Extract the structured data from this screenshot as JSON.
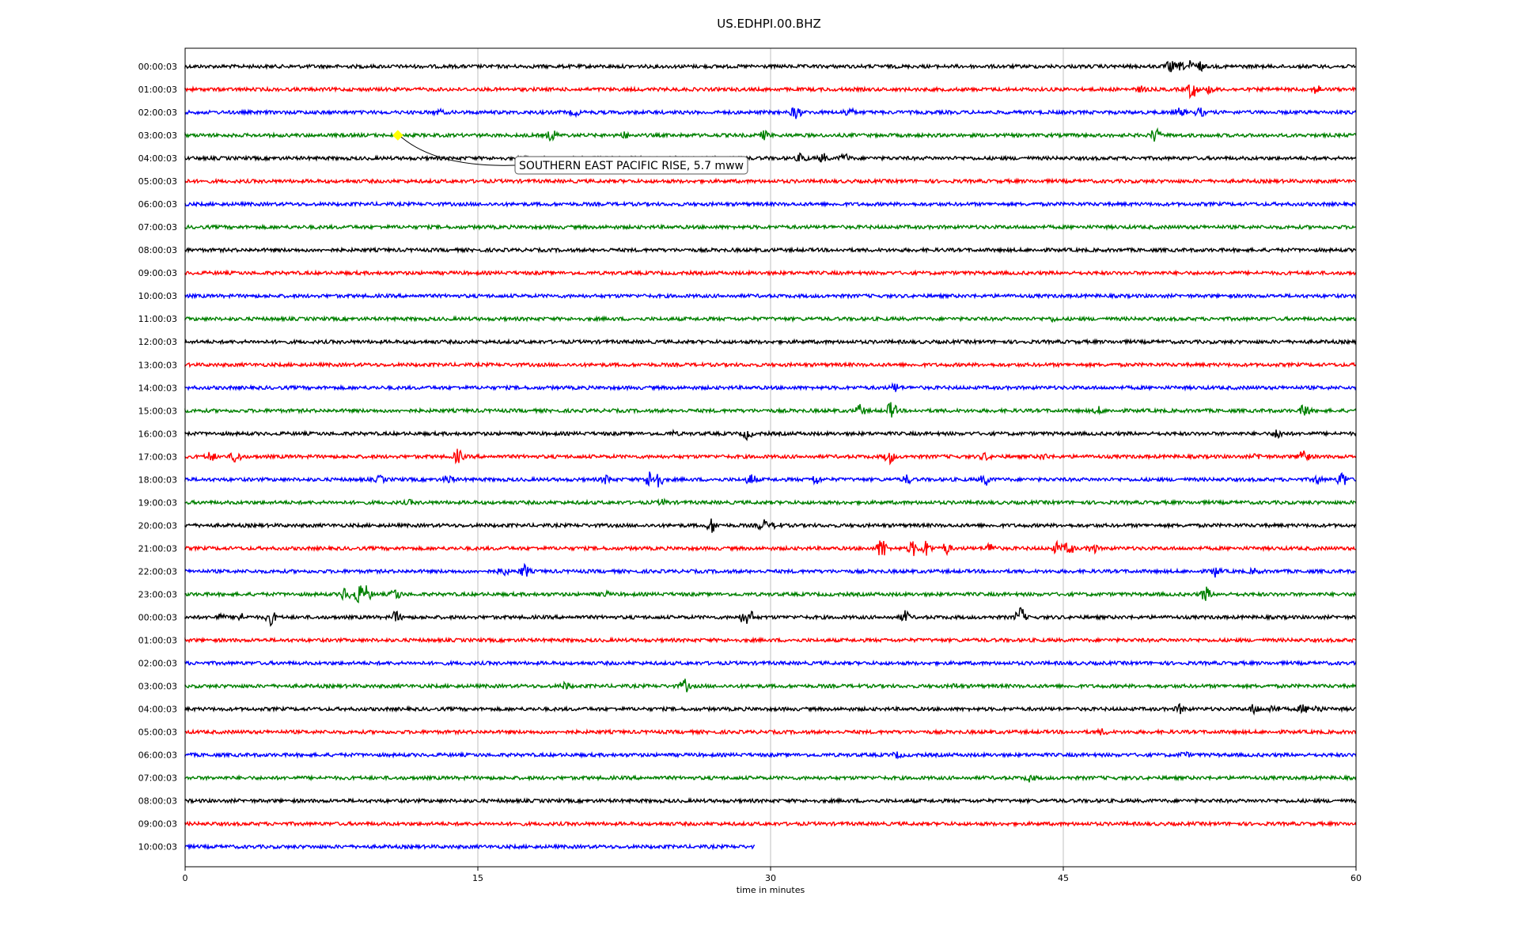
{
  "chart_data": {
    "type": "line",
    "title": "US.EDHPI.00.BHZ",
    "xlabel": "time in minutes",
    "xlim": [
      0,
      60
    ],
    "x_ticks": [
      0,
      15,
      30,
      45,
      60
    ],
    "x_tick_labels": [
      "0",
      "15",
      "30",
      "45",
      "60"
    ],
    "grid": "vertical",
    "trace_colors": [
      "#000000",
      "#ff0000",
      "#0000ff",
      "#008000"
    ],
    "rows": [
      {
        "label": "00:00:03",
        "end_minute": 60,
        "events": [
          [
            50.5,
            7
          ],
          [
            51.5,
            6
          ],
          [
            52,
            5
          ],
          [
            51,
            4
          ]
        ]
      },
      {
        "label": "01:00:03",
        "end_minute": 60,
        "events": [
          [
            51.6,
            12
          ],
          [
            52.5,
            4
          ],
          [
            58,
            5
          ],
          [
            49,
            3
          ]
        ]
      },
      {
        "label": "02:00:03",
        "end_minute": 60,
        "events": [
          [
            31.3,
            8
          ],
          [
            34,
            6
          ],
          [
            51,
            5
          ],
          [
            52,
            5
          ],
          [
            13,
            3
          ],
          [
            20,
            3
          ]
        ]
      },
      {
        "label": "03:00:03",
        "end_minute": 60,
        "events": [
          [
            18.8,
            7
          ],
          [
            29.7,
            5
          ],
          [
            49.7,
            9
          ],
          [
            22.5,
            3
          ]
        ]
      },
      {
        "label": "04:00:03",
        "end_minute": 60,
        "events": [
          [
            31.6,
            6
          ],
          [
            33.8,
            5
          ],
          [
            32.7,
            5
          ]
        ]
      },
      {
        "label": "05:00:03",
        "end_minute": 60,
        "events": []
      },
      {
        "label": "06:00:03",
        "end_minute": 60,
        "events": []
      },
      {
        "label": "07:00:03",
        "end_minute": 60,
        "events": []
      },
      {
        "label": "08:00:03",
        "end_minute": 60,
        "events": []
      },
      {
        "label": "09:00:03",
        "end_minute": 60,
        "events": []
      },
      {
        "label": "10:00:03",
        "end_minute": 60,
        "events": []
      },
      {
        "label": "11:00:03",
        "end_minute": 60,
        "events": [
          [
            44.5,
            2
          ]
        ]
      },
      {
        "label": "12:00:03",
        "end_minute": 60,
        "events": []
      },
      {
        "label": "13:00:03",
        "end_minute": 60,
        "events": []
      },
      {
        "label": "14:00:03",
        "end_minute": 60,
        "events": [
          [
            36.4,
            5
          ]
        ]
      },
      {
        "label": "15:00:03",
        "end_minute": 60,
        "events": [
          [
            34.6,
            7
          ],
          [
            36.2,
            11
          ],
          [
            57.4,
            9
          ],
          [
            46.8,
            4
          ]
        ]
      },
      {
        "label": "16:00:03",
        "end_minute": 60,
        "events": [
          [
            28.8,
            6
          ],
          [
            56,
            6
          ],
          [
            25,
            2
          ]
        ]
      },
      {
        "label": "17:00:03",
        "end_minute": 60,
        "events": [
          [
            1.3,
            6
          ],
          [
            2.6,
            8
          ],
          [
            14,
            9
          ],
          [
            36.1,
            8
          ],
          [
            57.3,
            12
          ],
          [
            41,
            4
          ],
          [
            44,
            3
          ],
          [
            55,
            3
          ]
        ]
      },
      {
        "label": "18:00:03",
        "end_minute": 60,
        "events": [
          [
            13.5,
            5
          ],
          [
            21.6,
            5
          ],
          [
            23.8,
            10
          ],
          [
            24.2,
            12
          ],
          [
            29,
            7
          ],
          [
            32.3,
            6
          ],
          [
            37,
            5
          ],
          [
            41,
            7
          ],
          [
            59.3,
            10
          ],
          [
            58,
            5
          ],
          [
            10,
            4
          ]
        ]
      },
      {
        "label": "19:00:03",
        "end_minute": 60,
        "events": [
          [
            24.5,
            3
          ],
          [
            11.5,
            2
          ]
        ]
      },
      {
        "label": "20:00:03",
        "end_minute": 60,
        "events": [
          [
            27,
            9
          ],
          [
            29.6,
            7
          ],
          [
            30.3,
            3
          ]
        ]
      },
      {
        "label": "21:00:03",
        "end_minute": 60,
        "events": [
          [
            35.7,
            14
          ],
          [
            37.3,
            9
          ],
          [
            38,
            10
          ],
          [
            39,
            7
          ],
          [
            41.3,
            7
          ],
          [
            44.7,
            7
          ],
          [
            45.3,
            8
          ],
          [
            46.5,
            6
          ]
        ]
      },
      {
        "label": "22:00:03",
        "end_minute": 60,
        "events": [
          [
            16.3,
            5
          ],
          [
            17.4,
            8
          ],
          [
            52.8,
            6
          ],
          [
            54.8,
            3
          ]
        ]
      },
      {
        "label": "23:00:03",
        "end_minute": 60,
        "events": [
          [
            8.2,
            8
          ],
          [
            8.9,
            13
          ],
          [
            9.3,
            10
          ],
          [
            10.8,
            7
          ],
          [
            52.3,
            9
          ],
          [
            21.5,
            3
          ]
        ]
      },
      {
        "label": "00:00:03",
        "end_minute": 60,
        "events": [
          [
            2.8,
            5
          ],
          [
            4.4,
            9
          ],
          [
            10.8,
            7
          ],
          [
            28.7,
            9
          ],
          [
            28.9,
            10
          ],
          [
            36.9,
            7
          ],
          [
            42.8,
            13
          ],
          [
            1.8,
            3
          ]
        ]
      },
      {
        "label": "01:00:03",
        "end_minute": 60,
        "events": []
      },
      {
        "label": "02:00:03",
        "end_minute": 60,
        "events": []
      },
      {
        "label": "03:00:03",
        "end_minute": 60,
        "events": [
          [
            19.5,
            4
          ],
          [
            25.6,
            8
          ],
          [
            39.5,
            2
          ]
        ]
      },
      {
        "label": "04:00:03",
        "end_minute": 60,
        "events": [
          [
            51,
            5
          ],
          [
            54.8,
            6
          ],
          [
            55.8,
            5
          ],
          [
            57.3,
            5
          ],
          [
            58,
            4
          ]
        ]
      },
      {
        "label": "05:00:03",
        "end_minute": 60,
        "events": [
          [
            47,
            3
          ]
        ]
      },
      {
        "label": "06:00:03",
        "end_minute": 60,
        "events": [
          [
            36.5,
            3
          ],
          [
            51.2,
            3
          ]
        ]
      },
      {
        "label": "07:00:03",
        "end_minute": 60,
        "events": [
          [
            43.3,
            4
          ]
        ]
      },
      {
        "label": "08:00:03",
        "end_minute": 60,
        "events": []
      },
      {
        "label": "09:00:03",
        "end_minute": 60,
        "events": []
      },
      {
        "label": "10:00:03",
        "end_minute": 29.2,
        "events": []
      }
    ],
    "annotation": {
      "text": "SOUTHERN EAST PACIFIC RISE, 5.7 mww",
      "row": 3,
      "minute": 10.9,
      "marker_color": "#ffff00"
    }
  }
}
